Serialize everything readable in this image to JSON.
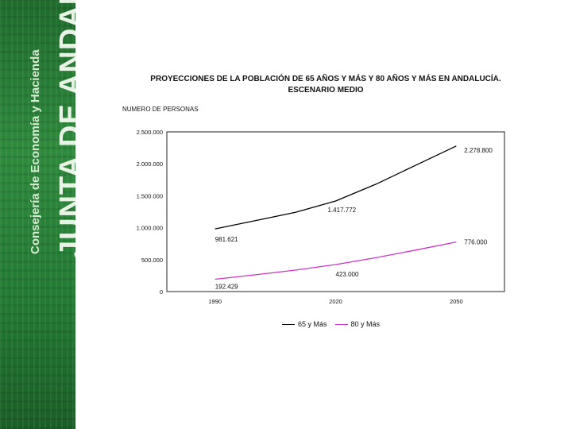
{
  "banner": {
    "org": "JUNTA DE ANDALUCIA",
    "dept": "Consejería de Economía y Hacienda",
    "colors": {
      "background": "#2e8a3c",
      "text": "#e8f3e6"
    }
  },
  "chart_data": {
    "type": "line",
    "title": "PROYECCIONES DE LA POBLACIÓN DE 65 AÑOS Y MÁS Y 80 AÑOS Y MÁS EN ANDALUCÍA.",
    "subtitle": "ESCENARIO MEDIO",
    "ylabel": "NUMERO DE PERSONAS",
    "xlabel": "",
    "x": [
      1990,
      2020,
      2050
    ],
    "x_tick_labels": [
      "1990",
      "2020",
      "2050"
    ],
    "y_ticks": [
      0,
      500000,
      1000000,
      1500000,
      2000000,
      2500000
    ],
    "y_tick_labels": [
      "0",
      "500.000",
      "1.000.000",
      "1.500.000",
      "2.000.000",
      "2.500.000"
    ],
    "ylim": [
      0,
      2500000
    ],
    "grid": false,
    "legend_position": "bottom",
    "series": [
      {
        "name": "65 y Más",
        "color": "#000000",
        "values": [
          981621,
          1417772,
          2278800
        ],
        "curve": [
          [
            1990,
            981621
          ],
          [
            2000,
            1110000
          ],
          [
            2010,
            1240000
          ],
          [
            2020,
            1417772
          ],
          [
            2030,
            1680000
          ],
          [
            2040,
            1980000
          ],
          [
            2050,
            2278800
          ]
        ],
        "labels": [
          "981.621",
          "1.417.772",
          "2.278.800"
        ]
      },
      {
        "name": "80 y Más",
        "color": "#cc33cc",
        "values": [
          192429,
          423000,
          776000
        ],
        "curve": [
          [
            1990,
            192429
          ],
          [
            2000,
            262000
          ],
          [
            2010,
            336000
          ],
          [
            2020,
            423000
          ],
          [
            2030,
            530000
          ],
          [
            2040,
            650000
          ],
          [
            2050,
            776000
          ]
        ],
        "labels": [
          "192.429",
          "423.000",
          "776.000"
        ]
      }
    ]
  }
}
